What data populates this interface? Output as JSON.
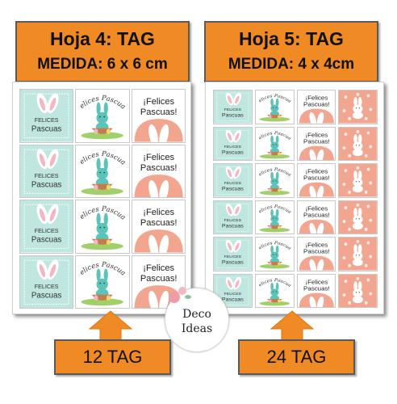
{
  "left_panel": {
    "title": "Hoja 4: TAG",
    "size": "MEDIDA: 6 x 6 cm",
    "count": "12 TAG",
    "rows": 4,
    "cols": 3
  },
  "right_panel": {
    "title": "Hoja 5: TAG",
    "size": "MEDIDA: 4 x 4cm",
    "count": "24 TAG",
    "rows": 6,
    "cols": 4
  },
  "tag_texts": {
    "felices": "FELICES",
    "pascuas": "Pascuas",
    "arc": "Felices Pascuas",
    "exclaim_1": "¡Felices",
    "exclaim_2": "Pascuas!"
  },
  "logo": {
    "line1": "Deco",
    "line2": "Ideas"
  },
  "colors": {
    "banner": "#f08a24",
    "mint": "#bfe6df",
    "salmon": "#f2a58f",
    "bunny": "#5cc3b8",
    "pink_ear": "#f4b6c2"
  }
}
